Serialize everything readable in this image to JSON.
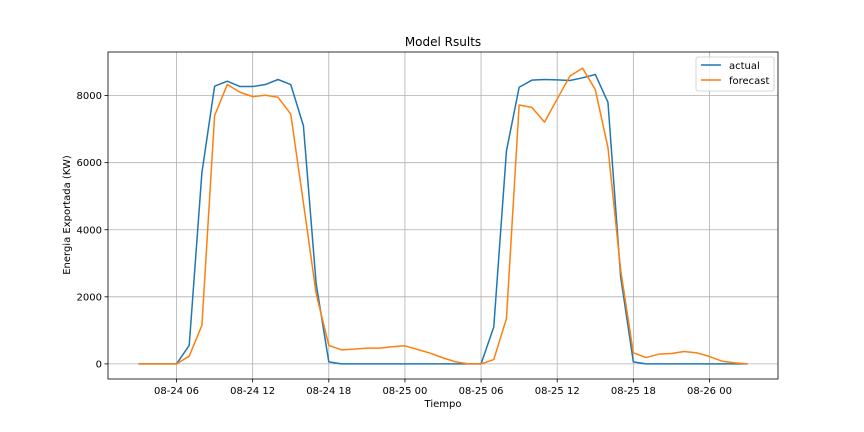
{
  "chart_data": {
    "type": "line",
    "title": "Model Rsults",
    "xlabel": "Tiempo",
    "ylabel": "Energia Exportada (KW)",
    "x_ticks": [
      "08-24 06",
      "08-24 12",
      "08-24 18",
      "08-25 00",
      "08-25 06",
      "08-25 12",
      "08-25 18",
      "08-26 00"
    ],
    "y_ticks": [
      0,
      2000,
      4000,
      6000,
      8000
    ],
    "ylim": [
      -450,
      9300
    ],
    "grid": true,
    "legend_position": "top-right",
    "x": [
      "08-24 03",
      "08-24 04",
      "08-24 05",
      "08-24 06",
      "08-24 07",
      "08-24 08",
      "08-24 09",
      "08-24 10",
      "08-24 11",
      "08-24 12",
      "08-24 13",
      "08-24 14",
      "08-24 15",
      "08-24 16",
      "08-24 17",
      "08-24 18",
      "08-24 19",
      "08-24 20",
      "08-24 21",
      "08-24 22",
      "08-24 23",
      "08-25 00",
      "08-25 01",
      "08-25 02",
      "08-25 03",
      "08-25 04",
      "08-25 05",
      "08-25 06",
      "08-25 07",
      "08-25 08",
      "08-25 09",
      "08-25 10",
      "08-25 11",
      "08-25 12",
      "08-25 13",
      "08-25 14",
      "08-25 15",
      "08-25 16",
      "08-25 17",
      "08-25 18",
      "08-25 19",
      "08-25 20",
      "08-25 21",
      "08-25 22",
      "08-25 23",
      "08-26 00",
      "08-26 01",
      "08-26 02",
      "08-26 03"
    ],
    "series": [
      {
        "name": "actual",
        "color": "#1f77b4",
        "values": [
          0,
          0,
          0,
          0,
          550,
          5700,
          8280,
          8430,
          8270,
          8270,
          8330,
          8480,
          8330,
          7100,
          2400,
          60,
          0,
          0,
          0,
          0,
          0,
          0,
          0,
          0,
          0,
          0,
          0,
          0,
          1100,
          6350,
          8250,
          8460,
          8480,
          8470,
          8450,
          8530,
          8630,
          7800,
          2600,
          60,
          0,
          0,
          0,
          0,
          0,
          0,
          0,
          0,
          0
        ]
      },
      {
        "name": "forecast",
        "color": "#ff7f0e",
        "values": [
          0,
          0,
          0,
          0,
          230,
          1150,
          7400,
          8330,
          8100,
          7970,
          8010,
          7950,
          7450,
          4800,
          2100,
          550,
          420,
          440,
          470,
          470,
          510,
          540,
          430,
          320,
          180,
          60,
          0,
          0,
          130,
          1350,
          7720,
          7650,
          7210,
          7900,
          8580,
          8820,
          8180,
          6450,
          2800,
          330,
          190,
          290,
          310,
          370,
          330,
          220,
          80,
          30,
          0
        ]
      }
    ]
  }
}
